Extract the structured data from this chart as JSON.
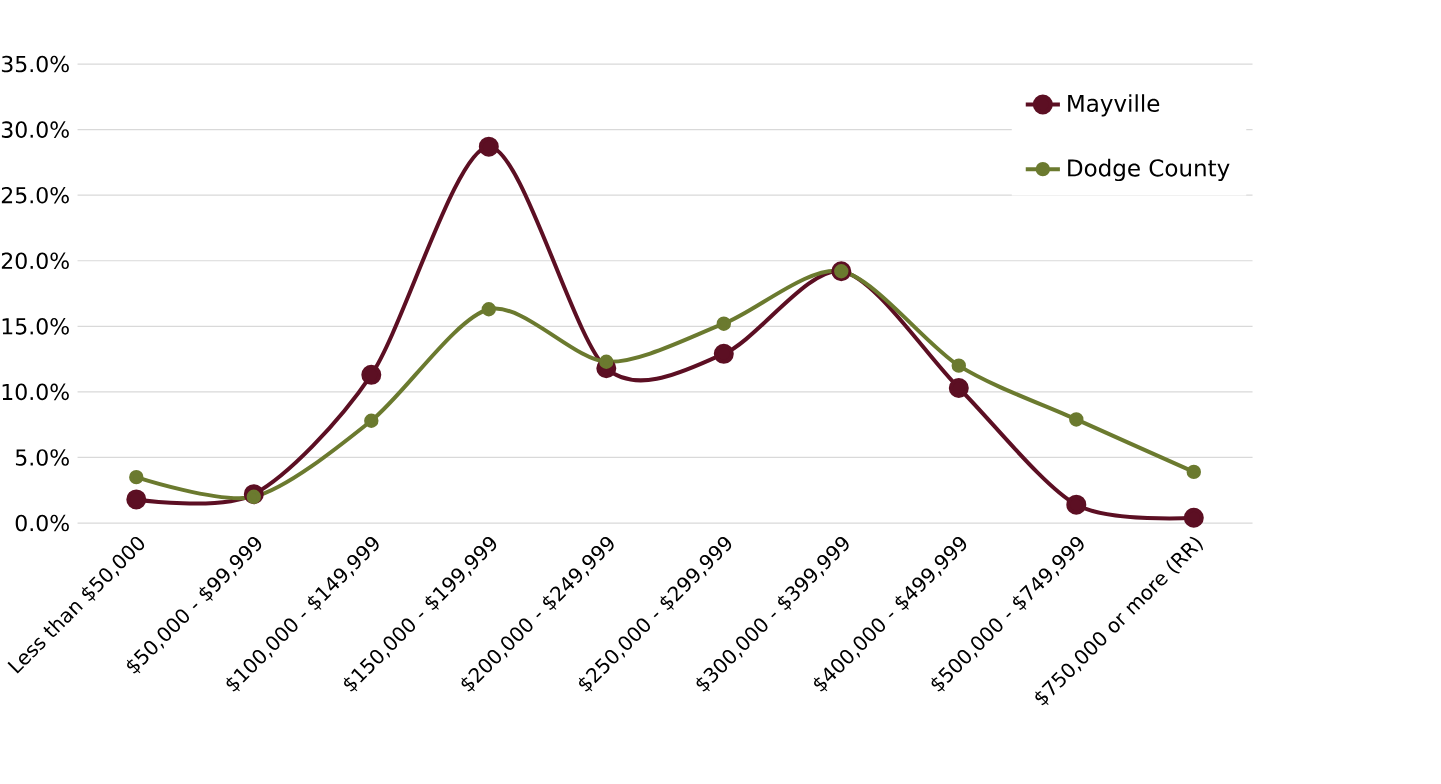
{
  "chart_data": {
    "type": "line",
    "categories": [
      "Less than $50,000",
      "$50,000 - $99,999",
      "$100,000 - $149,999",
      "$150,000 - $199,999",
      "$200,000 - $249,999",
      "$250,000 - $299,999",
      "$300,000 - $399,999",
      "$400,000 - $499,999",
      "$500,000 - $749,999",
      "$750,000 or more (RR)"
    ],
    "series": [
      {
        "name": "Mayville",
        "color": "#5c0f23",
        "values": [
          1.8,
          2.2,
          11.3,
          28.7,
          11.8,
          12.9,
          19.2,
          10.3,
          1.4,
          0.4
        ]
      },
      {
        "name": "Dodge County",
        "color": "#6b7a2f",
        "values": [
          3.5,
          2.0,
          7.8,
          16.3,
          12.3,
          15.2,
          19.2,
          12.0,
          7.9,
          3.9
        ]
      }
    ],
    "ylim": [
      0,
      35
    ],
    "yticks": [
      {
        "value": 0,
        "label": "0.0%"
      },
      {
        "value": 5,
        "label": "5.0%"
      },
      {
        "value": 10,
        "label": "10.0%"
      },
      {
        "value": 15,
        "label": "15.0%"
      },
      {
        "value": 20,
        "label": "20.0%"
      },
      {
        "value": 25,
        "label": "25.0%"
      },
      {
        "value": 30,
        "label": "30.0%"
      },
      {
        "value": 35,
        "label": "35.0%"
      }
    ],
    "grid": "y",
    "legend": "top right",
    "marker": "circle",
    "line_style": "solid"
  }
}
